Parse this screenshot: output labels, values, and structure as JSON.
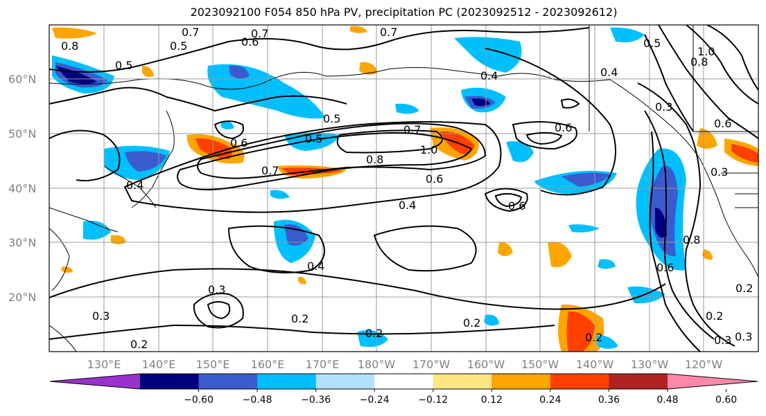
{
  "title": "2023092100 F054 850 hPa PV, precipitation PC (2023092512 - 2023092612)",
  "lat_ticks": [
    "60°N",
    "50°N",
    "40°N",
    "30°N",
    "20°N"
  ],
  "lon_ticks": [
    "130°E",
    "140°E",
    "150°E",
    "160°E",
    "170°E",
    "180°W",
    "170°W",
    "160°W",
    "150°W",
    "140°W",
    "130°W",
    "120°W"
  ],
  "contour_labels": [
    "0.7",
    "0.6",
    "0.5",
    "0.7",
    "0.5",
    "0.4",
    "0.5",
    "0.7",
    "1.0",
    "0.8",
    "0.6",
    "0.4",
    "0.6",
    "0.7",
    "0.5",
    "0.4",
    "0.6",
    "0.3",
    "0.2",
    "0.3",
    "0.2",
    "0.2",
    "0.2",
    "0.4",
    "0.8",
    "0.6",
    "0.2",
    "0.3",
    "0.6",
    "0.3",
    "0.2",
    "0.3",
    "0.2",
    "0.5",
    "1.0",
    "0.8",
    "0.7",
    "0.6",
    "0.8",
    "0.4",
    "0.3"
  ],
  "colorbar": {
    "colors": [
      "#9932cc",
      "#000080",
      "#3a5bd0",
      "#00bfff",
      "#b0e2ff",
      "#ffffff",
      "#ffe680",
      "#ffa500",
      "#ff4000",
      "#b22222",
      "#ff88aa"
    ],
    "labels": [
      "-0.60",
      "-0.48",
      "-0.36",
      "-0.24",
      "-0.12",
      "0.12",
      "0.24",
      "0.36",
      "0.48",
      "0.60"
    ]
  }
}
